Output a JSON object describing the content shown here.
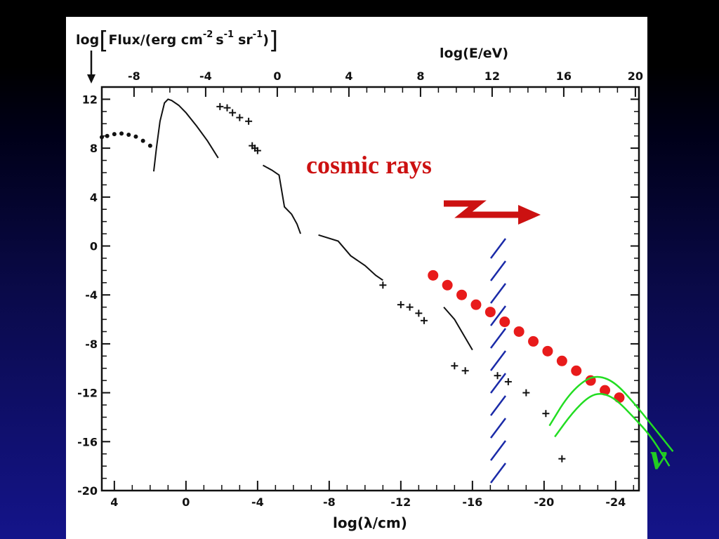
{
  "colors": {
    "plot_ink": "#111111",
    "panel": "#ffffff",
    "cosmic_rays": "#cc1111",
    "dots": "#e81b1b",
    "neutrino": "#22dd22",
    "hatch": "#1a2aa8"
  },
  "chart_data": {
    "type": "scatter",
    "title": "",
    "ylabel": "log[Flux/(erg cm^-2 s^-1 sr^-1)]",
    "ylabel_parts": [
      "log",
      "Flux/(erg cm",
      "-2",
      "s",
      "-1",
      "sr",
      "-1",
      ")"
    ],
    "xlabel_bottom": "log(λ/cm)",
    "xlabel_top": "log(E/eV)",
    "bottom_ticks": [
      "4",
      "0",
      "-4",
      "-8",
      "-12",
      "-16",
      "-20",
      "-24"
    ],
    "bottom_tick_values": [
      4,
      0,
      -4,
      -8,
      -12,
      -16,
      -20,
      -24
    ],
    "xlim_bottom": [
      4.7,
      -25.3
    ],
    "top_ticks": [
      "-8",
      "-4",
      "0",
      "4",
      "8",
      "12",
      "16",
      "20"
    ],
    "top_tick_values": [
      -8,
      -4,
      0,
      4,
      8,
      12,
      16,
      20
    ],
    "y_ticks": [
      "12",
      "8",
      "4",
      "0",
      "-4",
      "-8",
      "-12",
      "-16",
      "-20"
    ],
    "y_tick_values": [
      12,
      8,
      4,
      0,
      -4,
      -8,
      -12,
      -16,
      -20
    ],
    "ylim": [
      -20,
      13
    ],
    "grid": false,
    "series": [
      {
        "role": "radio-dots",
        "style": "dots",
        "x": [
          4.7,
          4.4,
          4.0,
          3.6,
          3.2,
          2.8,
          2.4,
          2.0
        ],
        "y": [
          8.9,
          9.0,
          9.15,
          9.2,
          9.1,
          8.95,
          8.6,
          8.2
        ]
      },
      {
        "role": "microwave-rise",
        "style": "line",
        "x": [
          -1.8,
          -1.2,
          -0.6,
          0.0,
          0.4,
          0.8,
          1.0,
          1.2,
          1.45,
          1.65,
          1.8
        ],
        "y": [
          7.2,
          8.6,
          9.8,
          10.9,
          11.5,
          11.9,
          12.0,
          11.7,
          10.2,
          8.0,
          6.1
        ]
      },
      {
        "role": "ir-optical",
        "style": "points",
        "x": [
          -1.9,
          -2.3,
          -2.6,
          -3.0,
          -3.5,
          -3.7,
          -3.85,
          -4.0
        ],
        "y": [
          11.4,
          11.3,
          10.9,
          10.5,
          10.2,
          8.2,
          8.0,
          7.8
        ]
      },
      {
        "role": "xray",
        "style": "line",
        "x": [
          -4.3,
          -4.8,
          -5.2,
          -5.5,
          -5.9,
          -6.2,
          -6.4
        ],
        "y": [
          6.6,
          6.2,
          5.8,
          3.2,
          2.6,
          1.8,
          1.0
        ]
      },
      {
        "role": "gamma-continuum",
        "style": "line",
        "x": [
          -7.4,
          -8.5,
          -9.2,
          -10.0,
          -10.6,
          -11.0
        ],
        "y": [
          0.9,
          0.4,
          -0.8,
          -1.6,
          -2.4,
          -2.8
        ]
      },
      {
        "role": "high-energy",
        "style": "points",
        "x": [
          -11.0,
          -12.0,
          -12.5,
          -13.0,
          -13.3
        ],
        "y": [
          -3.2,
          -4.8,
          -5.0,
          -5.5,
          -6.1
        ]
      },
      {
        "role": "uhe-curve",
        "style": "line",
        "x": [
          -14.4,
          -15.0,
          -15.6,
          -16.0
        ],
        "y": [
          -5.0,
          -6.0,
          -7.5,
          -8.5
        ]
      },
      {
        "role": "uhe-limits",
        "style": "points",
        "x": [
          -15.0,
          -15.6,
          -17.4,
          -18.0,
          -19.0,
          -20.1,
          -21.0
        ],
        "y": [
          -9.8,
          -10.2,
          -10.6,
          -11.1,
          -12.0,
          -13.7,
          -17.4
        ]
      },
      {
        "role": "cosmic-rays-dots",
        "style": "big-dots",
        "x": [
          -13.8,
          -14.6,
          -15.4,
          -16.2,
          -17.0,
          -17.8,
          -18.6,
          -19.4,
          -20.2,
          -21.0,
          -21.8,
          -22.6,
          -23.4,
          -24.2
        ],
        "y": [
          -2.4,
          -3.2,
          -4.0,
          -4.8,
          -5.4,
          -6.2,
          -7.0,
          -7.8,
          -8.6,
          -9.4,
          -10.2,
          -11.0,
          -11.8,
          -12.4
        ]
      },
      {
        "role": "neutrino-upper",
        "style": "green-line",
        "x": [
          -20.3,
          -21.3,
          -22.3,
          -23.1,
          -24.0,
          -25.0,
          -26.0,
          -27.2
        ],
        "y": [
          -14.7,
          -12.3,
          -10.9,
          -10.6,
          -11.2,
          -12.8,
          -14.6,
          -16.8
        ]
      },
      {
        "role": "neutrino-lower",
        "style": "green-line",
        "x": [
          -20.6,
          -21.6,
          -22.5,
          -23.2,
          -24.0,
          -25.0,
          -26.0,
          -27.0
        ],
        "y": [
          -15.6,
          -13.6,
          -12.3,
          -12.0,
          -12.5,
          -14.0,
          -15.6,
          -18.0
        ]
      }
    ]
  },
  "annotations": {
    "cosmic_rays": "cosmic rays",
    "neutrino_symbol": "ν"
  }
}
